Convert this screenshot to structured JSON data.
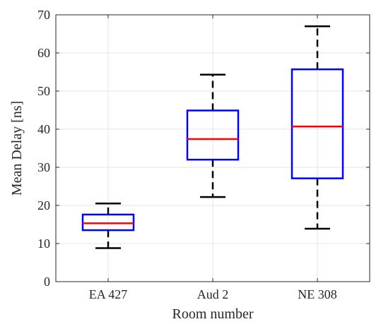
{
  "chart_data": {
    "type": "box",
    "categories": [
      "EA 427",
      "Aud 2",
      "NE 308"
    ],
    "boxes": [
      {
        "category": "EA 427",
        "whisker_low": 8.8,
        "q1": 13.5,
        "median": 15.3,
        "q3": 17.6,
        "whisker_high": 20.5
      },
      {
        "category": "Aud 2",
        "whisker_low": 22.2,
        "q1": 32.0,
        "median": 37.4,
        "q3": 44.9,
        "whisker_high": 54.3
      },
      {
        "category": "NE 308",
        "whisker_low": 13.9,
        "q1": 27.1,
        "median": 40.7,
        "q3": 55.7,
        "whisker_high": 67.0
      }
    ],
    "xlabel": "Room number",
    "ylabel": "Mean Delay [ns]",
    "ylim": [
      0,
      70
    ],
    "yticks": [
      0,
      10,
      20,
      30,
      40,
      50,
      60,
      70
    ],
    "grid": true,
    "colors": {
      "box": "#0000ff",
      "median": "#ff0000",
      "whisker": "#000000",
      "grid": "#e6e6e6",
      "axis": "#262626"
    }
  }
}
